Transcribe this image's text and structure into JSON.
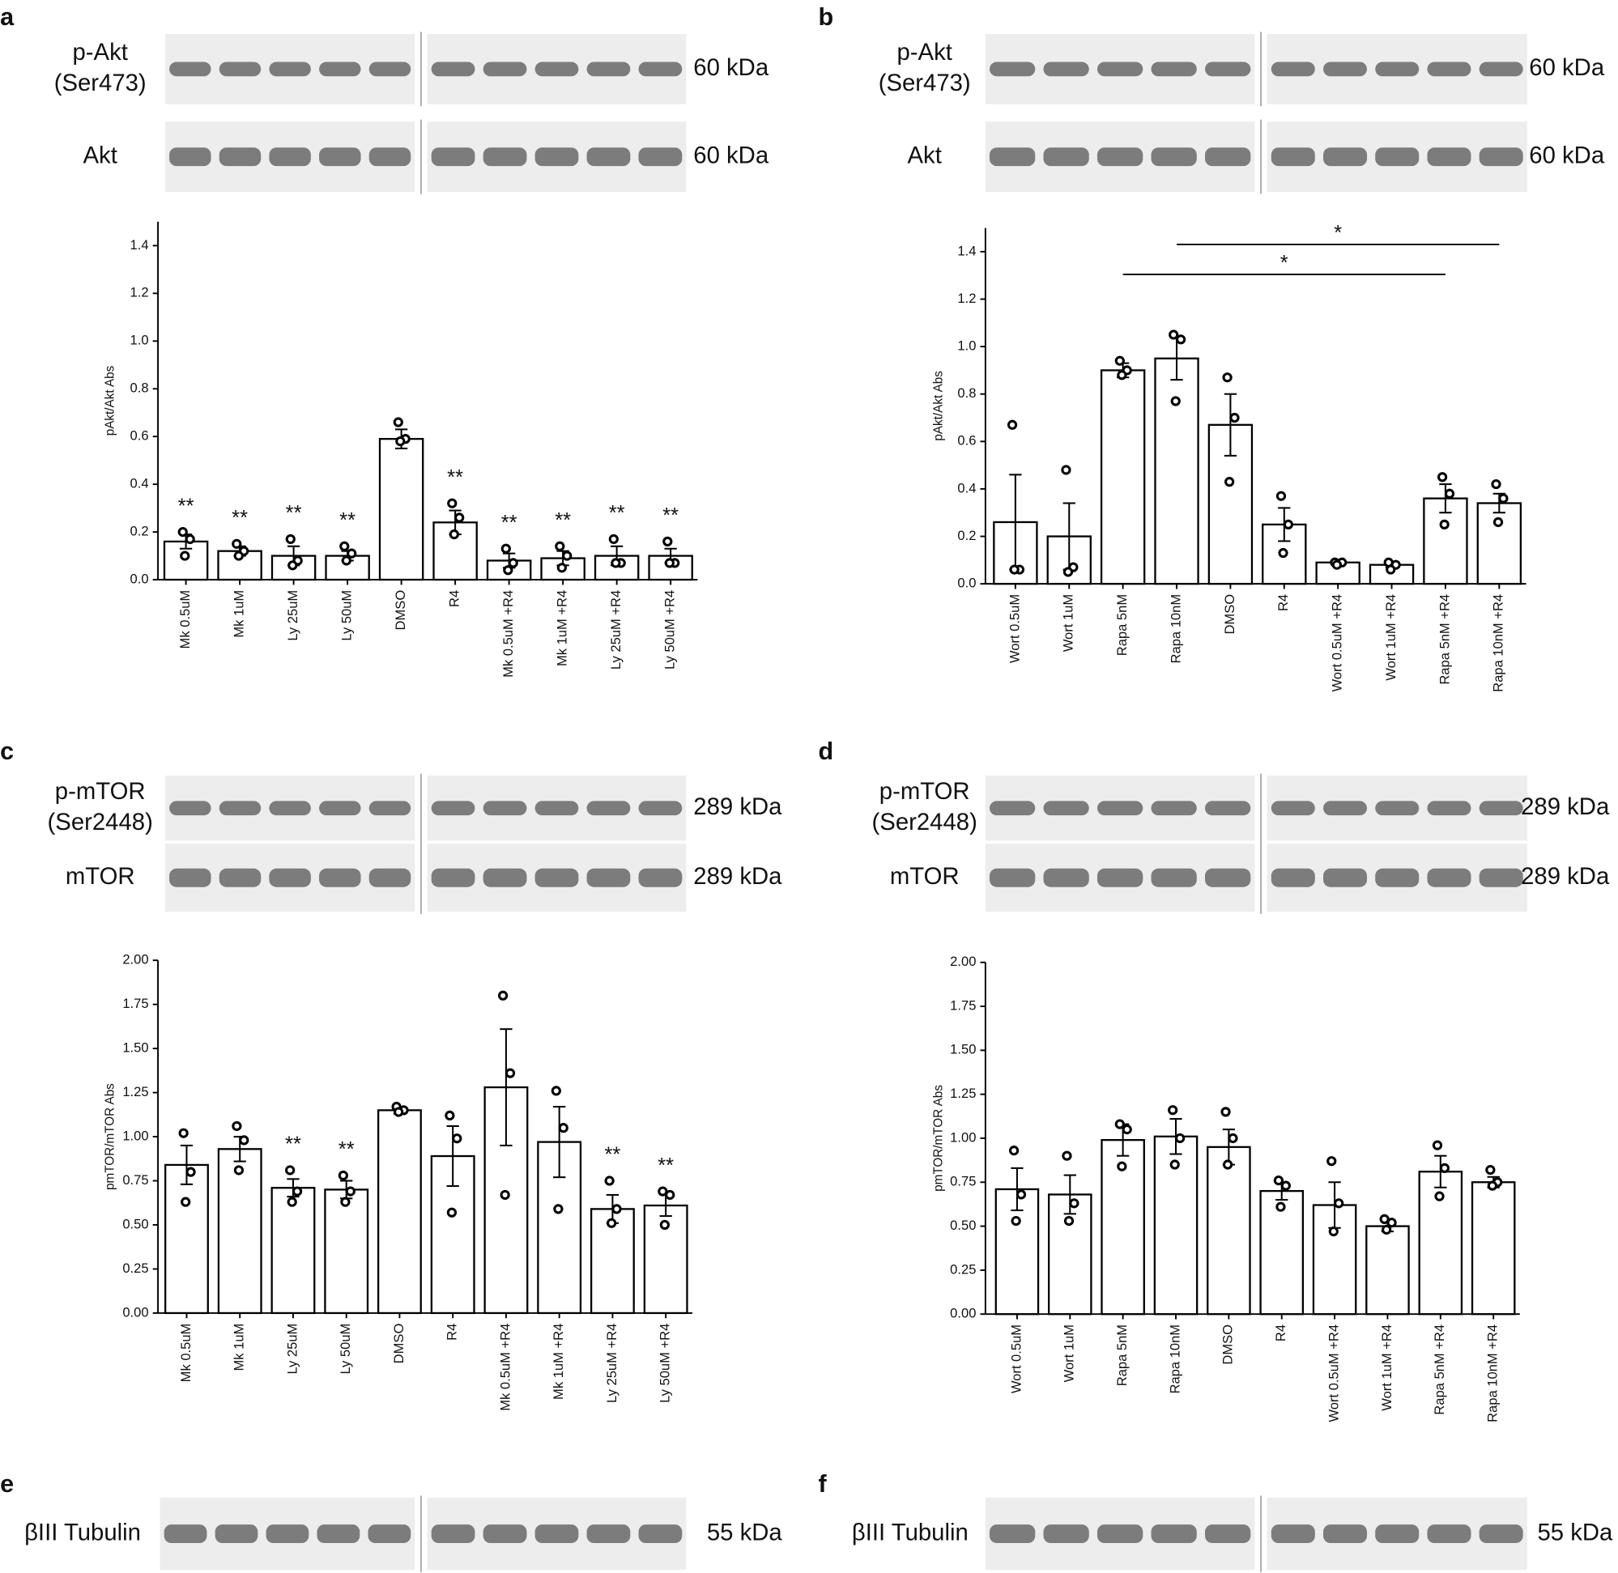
{
  "panels": [
    {
      "letter": "a",
      "rows": [
        {
          "label": [
            "p-Akt",
            "(Ser473)"
          ],
          "size": "60 kDa"
        },
        {
          "label": [
            "Akt"
          ],
          "size": "60 kDa"
        }
      ]
    },
    {
      "letter": "b",
      "rows": [
        {
          "label": [
            "p-Akt",
            "(Ser473)"
          ],
          "size": "60 kDa"
        },
        {
          "label": [
            "Akt"
          ],
          "size": "60 kDa"
        }
      ]
    },
    {
      "letter": "c",
      "rows": [
        {
          "label": [
            "p-mTOR",
            "(Ser2448)"
          ],
          "size": "289 kDa"
        },
        {
          "label": [
            "mTOR"
          ],
          "size": "289 kDa"
        }
      ]
    },
    {
      "letter": "d",
      "rows": [
        {
          "label": [
            "p-mTOR",
            "(Ser2448)"
          ],
          "size": "289 kDa"
        },
        {
          "label": [
            "mTOR"
          ],
          "size": "289 kDa"
        }
      ]
    },
    {
      "letter": "e",
      "rows": [
        {
          "label": [
            "βIII Tubulin"
          ],
          "size": "55 kDa"
        }
      ]
    },
    {
      "letter": "f",
      "rows": [
        {
          "label": [
            "βIII Tubulin"
          ],
          "size": "55 kDa"
        }
      ]
    }
  ],
  "chart_data": [
    {
      "type": "bar",
      "ylabel": "pAkt/Akt Abs",
      "color": "#ffffff",
      "categories": [
        "Mk 0.5uM",
        "Mk 1uM",
        "Ly 25uM",
        "Ly 50uM",
        "DMSO",
        "R4",
        "Mk 0.5uM +R4",
        "Mk 1uM +R4",
        "Ly 25uM +R4",
        "Ly 50uM +R4"
      ],
      "values": [
        0.16,
        0.12,
        0.1,
        0.1,
        0.59,
        0.24,
        0.08,
        0.09,
        0.1,
        0.1
      ],
      "errors": [
        0.03,
        0.02,
        0.04,
        0.02,
        0.04,
        0.05,
        0.03,
        0.03,
        0.04,
        0.03
      ],
      "points": [
        [
          0.2,
          0.17,
          0.1
        ],
        [
          0.15,
          0.12,
          0.1
        ],
        [
          0.17,
          0.08,
          0.06
        ],
        [
          0.14,
          0.11,
          0.08
        ],
        [
          0.66,
          0.59,
          0.58
        ],
        [
          0.32,
          0.26,
          0.19
        ],
        [
          0.13,
          0.07,
          0.04
        ],
        [
          0.14,
          0.1,
          0.05
        ],
        [
          0.17,
          0.07,
          0.07
        ],
        [
          0.16,
          0.07,
          0.07
        ]
      ],
      "significance": [
        "**",
        "**",
        "**",
        "**",
        null,
        "**",
        "**",
        "**",
        "**",
        "**"
      ],
      "ylim": [
        0,
        1.5
      ],
      "yticks": [
        {
          "value": 0,
          "label": "0.0"
        },
        0.2,
        0.4,
        0.6,
        0.8,
        {
          "value": 1,
          "label": "1.0"
        },
        1.2,
        1.4
      ]
    },
    {
      "type": "bar",
      "ylabel": "pAkt/Akt Abs",
      "color": "#ffffff",
      "categories": [
        "Wort 0.5uM",
        "Wort 1uM",
        "Rapa 5nM",
        "Rapa 10nM",
        "DMSO",
        "R4",
        "Wort 0.5uM +R4",
        "Wort 1uM +R4",
        "Rapa 5nM +R4",
        "Rapa 10nM +R4"
      ],
      "values": [
        0.26,
        0.2,
        0.9,
        0.95,
        0.67,
        0.25,
        0.09,
        0.08,
        0.36,
        0.34
      ],
      "errors": [
        0.2,
        0.14,
        0.03,
        0.09,
        0.13,
        0.07,
        0.01,
        0.01,
        0.06,
        0.04
      ],
      "points": [
        [
          0.67,
          0.06,
          0.06
        ],
        [
          0.48,
          0.07,
          0.05
        ],
        [
          0.94,
          0.9,
          0.88
        ],
        [
          1.05,
          1.03,
          0.77
        ],
        [
          0.87,
          0.7,
          0.43
        ],
        [
          0.37,
          0.25,
          0.13
        ],
        [
          0.09,
          0.09,
          0.08
        ],
        [
          0.09,
          0.08,
          0.06
        ],
        [
          0.45,
          0.38,
          0.25
        ],
        [
          0.42,
          0.36,
          0.26
        ]
      ],
      "brackets": [
        {
          "label": "*",
          "start": 3,
          "end": 9
        },
        {
          "label": "*",
          "start": 2,
          "end": 8
        }
      ],
      "ylim": [
        0,
        1.5
      ],
      "yticks": [
        {
          "value": 0,
          "label": "0.0"
        },
        0.2,
        0.4,
        0.6,
        0.8,
        {
          "value": 1,
          "label": "1.0"
        },
        1.2,
        1.4
      ]
    },
    {
      "type": "bar",
      "ylabel": "pmTOR/mTOR Abs",
      "color": "#ffffff",
      "categories": [
        "Mk 0.5uM",
        "Mk 1uM",
        "Ly 25uM",
        "Ly 50uM",
        "DMSO",
        "R4",
        "Mk 0.5uM +R4",
        "Mk 1uM +R4",
        "Ly 25uM +R4",
        "Ly 50uM +R4"
      ],
      "values": [
        0.84,
        0.93,
        0.71,
        0.7,
        1.15,
        0.89,
        1.28,
        0.97,
        0.59,
        0.61
      ],
      "errors": [
        0.11,
        0.07,
        0.05,
        0.05,
        0.02,
        0.17,
        0.33,
        0.2,
        0.08,
        0.06
      ],
      "points": [
        [
          1.02,
          0.8,
          0.63
        ],
        [
          1.06,
          0.98,
          0.81
        ],
        [
          0.81,
          0.69,
          0.63
        ],
        [
          0.78,
          0.69,
          0.63
        ],
        [
          1.17,
          1.15,
          1.14
        ],
        [
          1.12,
          0.99,
          0.57
        ],
        [
          1.8,
          1.36,
          0.67
        ],
        [
          1.26,
          1.05,
          0.59
        ],
        [
          0.75,
          0.59,
          0.51
        ],
        [
          0.69,
          0.67,
          0.5
        ]
      ],
      "significance": [
        null,
        null,
        "**",
        "**",
        null,
        null,
        null,
        null,
        "**",
        "**"
      ],
      "ylim": [
        0,
        2
      ],
      "yticks": [
        {
          "value": 0,
          "label": "0.00"
        },
        0.25,
        {
          "value": 0.5,
          "label": "0.50"
        },
        0.75,
        {
          "value": 1,
          "label": "1.00"
        },
        1.25,
        {
          "value": 1.5,
          "label": "1.50"
        },
        1.75,
        {
          "value": 2,
          "label": "2.00"
        }
      ]
    },
    {
      "type": "bar",
      "ylabel": "pmTOR/mTOR Abs",
      "color": "#ffffff",
      "categories": [
        "Wort 0.5uM",
        "Wort 1uM",
        "Rapa 5nM",
        "Rapa 10nM",
        "DMSO",
        "R4",
        "Wort 0.5uM +R4",
        "Wort 1uM +R4",
        "Rapa 5nM +R4",
        "Rapa 10nM +R4"
      ],
      "values": [
        0.71,
        0.68,
        0.99,
        1.01,
        0.95,
        0.7,
        0.62,
        0.5,
        0.81,
        0.75
      ],
      "errors": [
        0.12,
        0.11,
        0.09,
        0.1,
        0.1,
        0.05,
        0.13,
        0.03,
        0.09,
        0.03
      ],
      "points": [
        [
          0.93,
          0.68,
          0.53
        ],
        [
          0.9,
          0.63,
          0.53
        ],
        [
          1.08,
          1.05,
          0.84
        ],
        [
          1.16,
          1.0,
          0.85
        ],
        [
          1.15,
          1.0,
          0.85
        ],
        [
          0.76,
          0.73,
          0.61
        ],
        [
          0.87,
          0.63,
          0.47
        ],
        [
          0.54,
          0.52,
          0.48
        ],
        [
          0.96,
          0.83,
          0.67
        ],
        [
          0.82,
          0.75,
          0.73
        ]
      ],
      "ylim": [
        0,
        2
      ],
      "yticks": [
        {
          "value": 0,
          "label": "0.00"
        },
        0.25,
        {
          "value": 0.5,
          "label": "0.50"
        },
        0.75,
        {
          "value": 1,
          "label": "1.00"
        },
        1.25,
        {
          "value": 1.5,
          "label": "1.50"
        },
        1.75,
        {
          "value": 2,
          "label": "2.00"
        }
      ]
    }
  ]
}
